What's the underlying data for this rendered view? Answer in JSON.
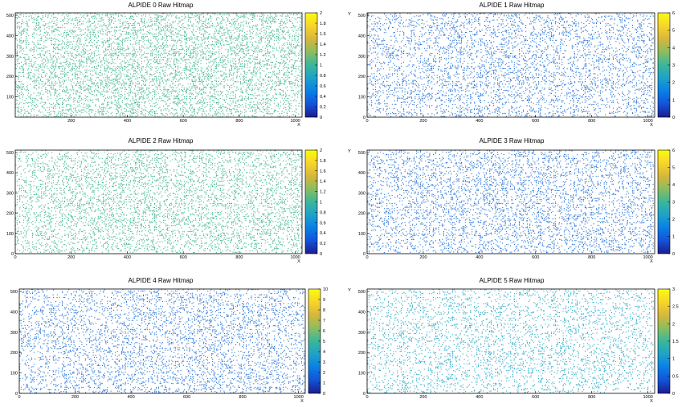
{
  "chart_data": [
    {
      "type": "heatmap",
      "title": "ALPIDE 0 Raw Hitmap",
      "xlabel": "X",
      "ylabel": "",
      "xlim": [
        0,
        1024
      ],
      "ylim": [
        0,
        512
      ],
      "x_ticks": [
        "200",
        "400",
        "600",
        "800",
        "1000"
      ],
      "y_ticks": [
        "100",
        "200",
        "300",
        "400",
        "500"
      ],
      "zlim": [
        0,
        2
      ],
      "z_ticks": [
        "0",
        "0.2",
        "0.4",
        "0.6",
        "0.8",
        "1",
        "1.2",
        "1.4",
        "1.6",
        "1.8",
        "2"
      ],
      "dominant_value": 1,
      "point_color": "#3cb48c",
      "point_density": 0.55
    },
    {
      "type": "heatmap",
      "title": "ALPIDE 1 Raw Hitmap",
      "xlabel": "X",
      "ylabel": "Y",
      "xlim": [
        0,
        1024
      ],
      "ylim": [
        0,
        512
      ],
      "x_ticks": [
        "0",
        "200",
        "400",
        "600",
        "800",
        "1000"
      ],
      "y_ticks": [
        "0",
        "100",
        "200",
        "300",
        "400",
        "500"
      ],
      "zlim": [
        0,
        6
      ],
      "z_ticks": [
        "0",
        "1",
        "2",
        "3",
        "4",
        "5",
        "6"
      ],
      "dominant_value": 1,
      "point_color": "#1f6fd6",
      "point_density": 0.4
    },
    {
      "type": "heatmap",
      "title": "ALPIDE 2 Raw Hitmap",
      "xlabel": "X",
      "ylabel": "",
      "xlim": [
        0,
        1024
      ],
      "ylim": [
        0,
        512
      ],
      "x_ticks": [
        "0",
        "200",
        "400",
        "600",
        "800",
        "1000"
      ],
      "y_ticks": [
        "0",
        "100",
        "200",
        "300",
        "400",
        "500"
      ],
      "zlim": [
        0,
        2
      ],
      "z_ticks": [
        "0",
        "0.2",
        "0.4",
        "0.6",
        "0.8",
        "1",
        "1.2",
        "1.4",
        "1.6",
        "1.8",
        "2"
      ],
      "dominant_value": 1,
      "point_color": "#3cb48c",
      "point_density": 0.45
    },
    {
      "type": "heatmap",
      "title": "ALPIDE 3 Raw Hitmap",
      "xlabel": "X",
      "ylabel": "Y",
      "xlim": [
        0,
        1024
      ],
      "ylim": [
        0,
        512
      ],
      "x_ticks": [
        "0",
        "200",
        "400",
        "600",
        "800",
        "1000"
      ],
      "y_ticks": [
        "0",
        "100",
        "200",
        "300",
        "400",
        "500"
      ],
      "zlim": [
        0,
        6
      ],
      "z_ticks": [
        "0",
        "1",
        "2",
        "3",
        "4",
        "5",
        "6"
      ],
      "dominant_value": 1,
      "point_color": "#1f6fd6",
      "point_density": 0.4
    },
    {
      "type": "heatmap",
      "title": "ALPIDE 4 Raw Hitmap",
      "xlabel": "X",
      "ylabel": "",
      "xlim": [
        0,
        1024
      ],
      "ylim": [
        0,
        512
      ],
      "x_ticks": [
        "0",
        "200",
        "400",
        "600",
        "800",
        "1000"
      ],
      "y_ticks": [
        "0",
        "100",
        "200",
        "300",
        "400",
        "500"
      ],
      "zlim": [
        0,
        10
      ],
      "z_ticks": [
        "0",
        "1",
        "2",
        "3",
        "4",
        "5",
        "6",
        "7",
        "8",
        "9",
        "10"
      ],
      "dominant_value": 1,
      "point_color": "#1f6fd6",
      "point_density": 0.4
    },
    {
      "type": "heatmap",
      "title": "ALPIDE 5 Raw Hitmap",
      "xlabel": "X",
      "ylabel": "Y",
      "xlim": [
        0,
        1024
      ],
      "ylim": [
        0,
        512
      ],
      "x_ticks": [
        "0",
        "200",
        "400",
        "600",
        "800",
        "1000"
      ],
      "y_ticks": [
        "0",
        "100",
        "200",
        "300",
        "400",
        "500"
      ],
      "zlim": [
        0,
        3
      ],
      "z_ticks": [
        "0",
        "0.5",
        "1",
        "1.5",
        "2",
        "2.5",
        "3"
      ],
      "dominant_value": 1,
      "point_color": "#23a8c6",
      "point_density": 0.35
    }
  ]
}
